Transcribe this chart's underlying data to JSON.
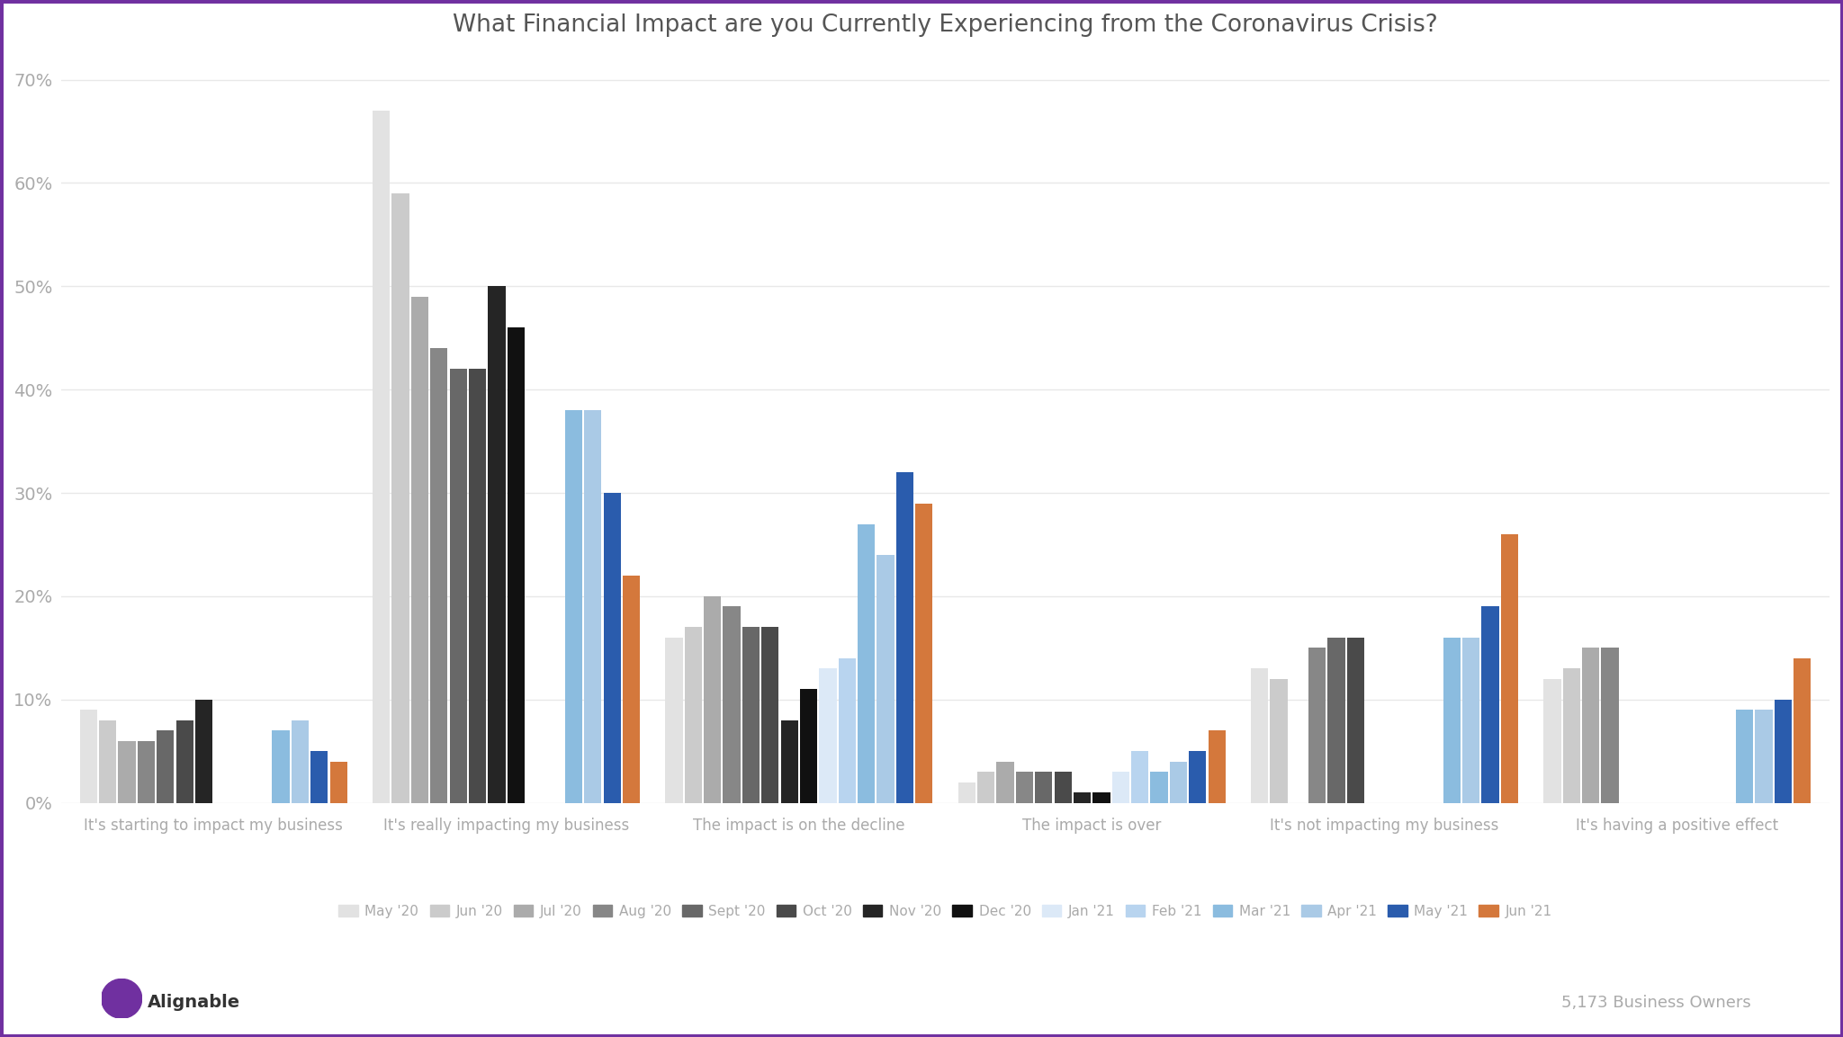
{
  "title": "What Financial Impact are you Currently Experiencing from the Coronavirus Crisis?",
  "categories": [
    "It's starting to impact my business",
    "It's really impacting my business",
    "The impact is on the decline",
    "The impact is over",
    "It's not impacting my business",
    "It's having a positive effect"
  ],
  "series": [
    {
      "label": "May '20",
      "color": "#e2e2e2",
      "values": [
        9,
        67,
        16,
        2,
        13,
        12
      ]
    },
    {
      "label": "Jun '20",
      "color": "#cbcbcb",
      "values": [
        8,
        59,
        17,
        3,
        12,
        13
      ]
    },
    {
      "label": "Jul '20",
      "color": "#ababab",
      "values": [
        6,
        49,
        20,
        4,
        null,
        15
      ]
    },
    {
      "label": "Aug '20",
      "color": "#878787",
      "values": [
        6,
        44,
        19,
        3,
        15,
        15
      ]
    },
    {
      "label": "Sept '20",
      "color": "#686868",
      "values": [
        7,
        42,
        17,
        3,
        16,
        null
      ]
    },
    {
      "label": "Oct '20",
      "color": "#4a4a4a",
      "values": [
        8,
        42,
        17,
        3,
        16,
        null
      ]
    },
    {
      "label": "Nov '20",
      "color": "#252525",
      "values": [
        10,
        50,
        8,
        1,
        null,
        null
      ]
    },
    {
      "label": "Dec '20",
      "color": "#111111",
      "values": [
        null,
        46,
        11,
        1,
        null,
        null
      ]
    },
    {
      "label": "Jan '21",
      "color": "#dce9f7",
      "values": [
        null,
        null,
        13,
        3,
        null,
        null
      ]
    },
    {
      "label": "Feb '21",
      "color": "#b8d4ef",
      "values": [
        null,
        null,
        14,
        5,
        null,
        null
      ]
    },
    {
      "label": "Mar '21",
      "color": "#8bbcdf",
      "values": [
        7,
        38,
        27,
        3,
        16,
        9
      ]
    },
    {
      "label": "Apr '21",
      "color": "#aacae6",
      "values": [
        8,
        38,
        24,
        4,
        16,
        9
      ]
    },
    {
      "label": "May '21",
      "color": "#2a5cad",
      "values": [
        5,
        30,
        32,
        5,
        19,
        10
      ]
    },
    {
      "label": "Jun '21",
      "color": "#d4783c",
      "values": [
        4,
        22,
        29,
        7,
        26,
        14
      ]
    }
  ],
  "ylim": [
    0,
    0.72
  ],
  "ytick_labels": [
    "0%",
    "10%",
    "20%",
    "30%",
    "40%",
    "50%",
    "60%",
    "70%"
  ],
  "background_color": "#ffffff",
  "border_color": "#7030a0",
  "grid_color": "#e8e8e8",
  "footer_left": "Alignable",
  "footer_right": "5,173 Business Owners"
}
